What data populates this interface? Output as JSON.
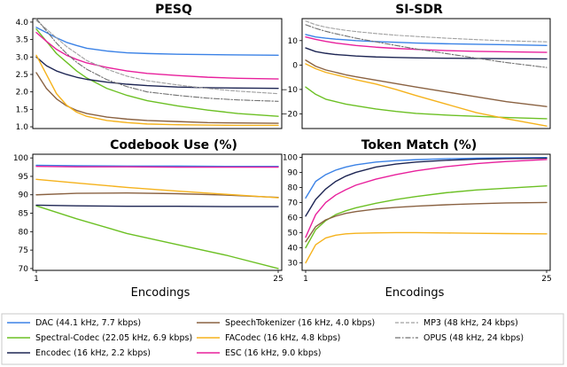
{
  "chart_data": [
    {
      "type": "line",
      "title": "PESQ",
      "xlabel": "",
      "ylabel": "",
      "xlim": [
        1,
        25
      ],
      "ylim": [
        0.95,
        4.1
      ],
      "yticks": [
        "1.0",
        "1.5",
        "2.0",
        "2.5",
        "3.0",
        "3.5",
        "4.0"
      ],
      "xticks": [],
      "x": [
        1,
        2,
        3,
        4,
        5,
        6,
        8,
        10,
        12,
        15,
        18,
        21,
        25
      ],
      "series": [
        {
          "name": "DAC",
          "values": [
            3.85,
            3.7,
            3.55,
            3.42,
            3.33,
            3.25,
            3.17,
            3.12,
            3.1,
            3.08,
            3.07,
            3.06,
            3.05
          ]
        },
        {
          "name": "Spectral-Codec",
          "values": [
            3.8,
            3.45,
            3.1,
            2.85,
            2.6,
            2.4,
            2.1,
            1.9,
            1.75,
            1.6,
            1.48,
            1.38,
            1.3
          ]
        },
        {
          "name": "Encodec",
          "values": [
            3.0,
            2.75,
            2.6,
            2.5,
            2.42,
            2.36,
            2.28,
            2.22,
            2.18,
            2.14,
            2.12,
            2.11,
            2.1
          ]
        },
        {
          "name": "SpeechTokenizer",
          "values": [
            2.55,
            2.1,
            1.8,
            1.6,
            1.47,
            1.38,
            1.28,
            1.22,
            1.18,
            1.15,
            1.12,
            1.11,
            1.1
          ]
        },
        {
          "name": "FACodec",
          "values": [
            3.05,
            2.5,
            1.95,
            1.62,
            1.42,
            1.3,
            1.18,
            1.12,
            1.08,
            1.06,
            1.05,
            1.04,
            1.04
          ]
        },
        {
          "name": "ESC",
          "values": [
            3.7,
            3.45,
            3.22,
            3.05,
            2.93,
            2.83,
            2.7,
            2.6,
            2.53,
            2.47,
            2.42,
            2.39,
            2.37
          ]
        },
        {
          "name": "MP3",
          "values": [
            4.05,
            3.8,
            3.55,
            3.3,
            3.1,
            2.9,
            2.65,
            2.45,
            2.32,
            2.2,
            2.1,
            2.02,
            1.95
          ]
        },
        {
          "name": "OPUS",
          "values": [
            4.1,
            3.75,
            3.4,
            3.1,
            2.85,
            2.65,
            2.35,
            2.15,
            2.0,
            1.9,
            1.82,
            1.77,
            1.73
          ]
        }
      ]
    },
    {
      "type": "line",
      "title": "SI-SDR",
      "xlabel": "",
      "ylabel": "",
      "xlim": [
        1,
        25
      ],
      "ylim": [
        -26,
        19
      ],
      "yticks": [
        "−20",
        "−10",
        "0",
        "10"
      ],
      "xticks": [],
      "x": [
        1,
        2,
        3,
        4,
        5,
        6,
        8,
        10,
        12,
        15,
        18,
        21,
        25
      ],
      "series": [
        {
          "name": "DAC",
          "values": [
            12.5,
            11.5,
            11.0,
            10.6,
            10.3,
            10.0,
            9.6,
            9.3,
            9.0,
            8.7,
            8.5,
            8.3,
            8.0
          ]
        },
        {
          "name": "Spectral-Codec",
          "values": [
            -9.0,
            -12.0,
            -14.0,
            -15.0,
            -16.0,
            -16.7,
            -18.0,
            -19.0,
            -19.8,
            -20.5,
            -21.0,
            -21.5,
            -22.0
          ]
        },
        {
          "name": "Encodec",
          "values": [
            7.0,
            5.5,
            4.8,
            4.3,
            4.0,
            3.7,
            3.3,
            3.1,
            2.9,
            2.8,
            2.7,
            2.6,
            2.5
          ]
        },
        {
          "name": "SpeechTokenizer",
          "values": [
            2.0,
            -0.5,
            -2.0,
            -3.0,
            -4.0,
            -4.8,
            -6.2,
            -7.6,
            -9.0,
            -11.0,
            -13.0,
            -15.0,
            -17.0
          ]
        },
        {
          "name": "FACodec",
          "values": [
            0.5,
            -1.5,
            -3.0,
            -4.0,
            -5.0,
            -6.0,
            -7.8,
            -10.0,
            -12.5,
            -16.0,
            -19.5,
            -22.0,
            -25.0
          ]
        },
        {
          "name": "ESC",
          "values": [
            11.5,
            10.5,
            9.7,
            9.0,
            8.5,
            8.0,
            7.3,
            6.8,
            6.4,
            5.9,
            5.6,
            5.4,
            5.2
          ]
        },
        {
          "name": "MP3",
          "values": [
            18.0,
            16.5,
            15.5,
            14.8,
            14.2,
            13.7,
            12.9,
            12.2,
            11.7,
            11.0,
            10.4,
            9.9,
            9.5
          ]
        },
        {
          "name": "OPUS",
          "values": [
            16.5,
            15.0,
            13.8,
            12.8,
            11.9,
            11.0,
            9.5,
            8.0,
            6.6,
            4.7,
            2.8,
            1.0,
            -1.0
          ]
        }
      ]
    },
    {
      "type": "line",
      "title": "Codebook Use (%)",
      "xlabel": "Encodings",
      "ylabel": "",
      "xlim": [
        1,
        25
      ],
      "ylim": [
        69.5,
        101
      ],
      "yticks": [
        "70",
        "75",
        "80",
        "85",
        "90",
        "95",
        "100"
      ],
      "xticks": [
        "1",
        "25"
      ],
      "x": [
        1,
        5,
        10,
        15,
        20,
        25
      ],
      "series": [
        {
          "name": "DAC",
          "values": [
            98.0,
            97.9,
            97.8,
            97.8,
            97.7,
            97.7
          ]
        },
        {
          "name": "Spectral-Codec",
          "values": [
            87.0,
            83.5,
            79.5,
            76.5,
            73.5,
            70.0
          ]
        },
        {
          "name": "Encodec",
          "values": [
            87.2,
            87.0,
            86.9,
            86.9,
            86.8,
            86.8
          ]
        },
        {
          "name": "SpeechTokenizer",
          "values": [
            90.0,
            90.4,
            90.5,
            90.3,
            89.9,
            89.3
          ]
        },
        {
          "name": "FACodec",
          "values": [
            94.2,
            93.2,
            92.0,
            91.0,
            90.1,
            89.2
          ]
        },
        {
          "name": "ESC",
          "values": [
            97.7,
            97.6,
            97.6,
            97.5,
            97.5,
            97.5
          ]
        }
      ]
    },
    {
      "type": "line",
      "title": "Token Match (%)",
      "xlabel": "Encodings",
      "ylabel": "",
      "xlim": [
        1,
        25
      ],
      "ylim": [
        25,
        102
      ],
      "yticks": [
        "30",
        "40",
        "50",
        "60",
        "70",
        "80",
        "90",
        "100"
      ],
      "xticks": [
        "1",
        "25"
      ],
      "x": [
        1,
        2,
        3,
        4,
        5,
        6,
        8,
        10,
        12,
        15,
        18,
        21,
        25
      ],
      "series": [
        {
          "name": "DAC",
          "values": [
            73.0,
            84.0,
            88.5,
            91.5,
            93.5,
            95.0,
            96.8,
            97.8,
            98.4,
            99.0,
            99.4,
            99.6,
            99.8
          ]
        },
        {
          "name": "Spectral-Codec",
          "values": [
            40.0,
            52.0,
            58.0,
            62.0,
            64.5,
            66.5,
            69.5,
            72.0,
            74.0,
            76.5,
            78.3,
            79.5,
            81.0
          ]
        },
        {
          "name": "Encodec",
          "values": [
            61.0,
            72.0,
            79.0,
            84.0,
            87.5,
            90.0,
            93.5,
            95.5,
            96.8,
            98.0,
            98.7,
            99.1,
            99.4
          ]
        },
        {
          "name": "SpeechTokenizer",
          "values": [
            44.0,
            54.0,
            58.5,
            61.0,
            62.8,
            64.0,
            65.7,
            66.8,
            67.6,
            68.5,
            69.2,
            69.7,
            70.0
          ]
        },
        {
          "name": "FACodec",
          "values": [
            30.0,
            42.0,
            46.5,
            48.3,
            49.2,
            49.6,
            49.9,
            50.0,
            50.0,
            49.8,
            49.6,
            49.4,
            49.2
          ]
        },
        {
          "name": "ESC",
          "values": [
            47.0,
            62.0,
            70.0,
            75.0,
            78.5,
            81.5,
            85.5,
            88.5,
            91.0,
            93.8,
            95.8,
            97.2,
            98.5
          ]
        }
      ]
    }
  ],
  "legend": {
    "position": "bottom",
    "entries": [
      {
        "label": "DAC (44.1 kHz, 7.7 kbps)",
        "color": "#3b82e6",
        "dash": "solid"
      },
      {
        "label": "Spectral-Codec (22.05 kHz, 6.9 kbps)",
        "color": "#6cc024",
        "dash": "solid"
      },
      {
        "label": "Encodec (16 kHz, 2.2 kbps)",
        "color": "#1e2654",
        "dash": "solid"
      },
      {
        "label": "SpeechTokenizer (16 kHz, 4.0 kbps)",
        "color": "#8a6242",
        "dash": "solid"
      },
      {
        "label": "FACodec (16 kHz, 4.8 kbps)",
        "color": "#f5b21c",
        "dash": "solid"
      },
      {
        "label": "ESC (16 kHz, 9.0 kbps)",
        "color": "#e8209c",
        "dash": "solid"
      },
      {
        "label": "MP3 (48 kHz, 24 kbps)",
        "color": "#a0a0a0",
        "dash": "dashed"
      },
      {
        "label": "OPUS (48 kHz, 24 kbps)",
        "color": "#707070",
        "dash": "dashdot"
      }
    ]
  }
}
